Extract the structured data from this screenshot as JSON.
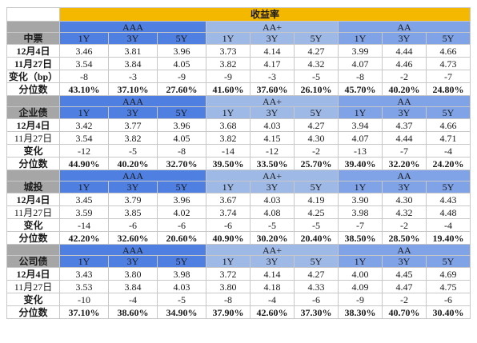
{
  "title": "收益率",
  "colors": {
    "aaa": "#4f7fe0",
    "aaplus": "#9fb9e6",
    "aa": "#7fa3e6",
    "title_bg": "#f5b800",
    "corner": "#a6a6a6"
  },
  "groups": [
    "AAA",
    "AA+",
    "AA"
  ],
  "tenors": [
    "1Y",
    "3Y",
    "5Y"
  ],
  "sections": [
    {
      "name": "中票",
      "rows": [
        {
          "label": "12月4日",
          "label_bold": true,
          "values": [
            "3.46",
            "3.81",
            "3.96",
            "3.73",
            "4.14",
            "4.27",
            "3.99",
            "4.44",
            "4.66"
          ]
        },
        {
          "label": "11月27日",
          "label_bold": true,
          "values": [
            "3.54",
            "3.84",
            "4.05",
            "3.82",
            "4.17",
            "4.32",
            "4.07",
            "4.46",
            "4.73"
          ]
        },
        {
          "label": "变化（bp）",
          "label_bold": true,
          "values": [
            "-8",
            "-3",
            "-9",
            "-9",
            "-3",
            "-5",
            "-8",
            "-2",
            "-7"
          ]
        },
        {
          "label": "分位数",
          "label_bold": true,
          "values": [
            "43.10%",
            "37.10%",
            "27.60%",
            "41.60%",
            "37.60%",
            "26.10%",
            "45.70%",
            "40.20%",
            "24.80%"
          ]
        }
      ]
    },
    {
      "name": "企业债",
      "rows": [
        {
          "label": "12月4日",
          "label_bold": true,
          "values": [
            "3.42",
            "3.77",
            "3.96",
            "3.68",
            "4.03",
            "4.27",
            "3.94",
            "4.37",
            "4.66"
          ]
        },
        {
          "label": "11月27日",
          "label_bold": false,
          "values": [
            "3.54",
            "3.82",
            "4.05",
            "3.82",
            "4.15",
            "4.30",
            "4.07",
            "4.44",
            "4.71"
          ]
        },
        {
          "label": "变化",
          "label_bold": true,
          "values": [
            "-12",
            "-5",
            "-8",
            "-14",
            "-12",
            "-2",
            "-13",
            "-7",
            "-4"
          ]
        },
        {
          "label": "分位数",
          "label_bold": true,
          "values": [
            "44.90%",
            "40.20%",
            "32.70%",
            "39.50%",
            "33.50%",
            "25.70%",
            "39.40%",
            "32.20%",
            "24.20%"
          ]
        }
      ]
    },
    {
      "name": "城投",
      "rows": [
        {
          "label": "12月4日",
          "label_bold": true,
          "values": [
            "3.45",
            "3.79",
            "3.96",
            "3.67",
            "4.03",
            "4.19",
            "3.90",
            "4.30",
            "4.43"
          ]
        },
        {
          "label": "11月27日",
          "label_bold": false,
          "values": [
            "3.59",
            "3.85",
            "4.02",
            "3.74",
            "4.08",
            "4.25",
            "3.98",
            "4.32",
            "4.48"
          ]
        },
        {
          "label": "变化",
          "label_bold": true,
          "values": [
            "-14",
            "-6",
            "-6",
            "-6",
            "-5",
            "-5",
            "-7",
            "-2",
            "-4"
          ]
        },
        {
          "label": "分位数",
          "label_bold": true,
          "values": [
            "42.20%",
            "32.60%",
            "20.60%",
            "40.90%",
            "30.20%",
            "20.40%",
            "38.50%",
            "28.50%",
            "19.40%"
          ]
        }
      ]
    },
    {
      "name": "公司债",
      "rows": [
        {
          "label": "12月4日",
          "label_bold": true,
          "values": [
            "3.43",
            "3.80",
            "3.98",
            "3.72",
            "4.14",
            "4.27",
            "4.00",
            "4.45",
            "4.69"
          ]
        },
        {
          "label": "11月27日",
          "label_bold": false,
          "values": [
            "3.53",
            "3.84",
            "4.03",
            "3.80",
            "4.18",
            "4.33",
            "4.09",
            "4.47",
            "4.75"
          ]
        },
        {
          "label": "变化",
          "label_bold": true,
          "values": [
            "-10",
            "-4",
            "-5",
            "-8",
            "-4",
            "-6",
            "-9",
            "-2",
            "-6"
          ]
        },
        {
          "label": "分位数",
          "label_bold": true,
          "values": [
            "37.10%",
            "38.60%",
            "34.90%",
            "37.90%",
            "42.60%",
            "37.30%",
            "38.30%",
            "40.70%",
            "30.40%"
          ]
        }
      ]
    }
  ]
}
